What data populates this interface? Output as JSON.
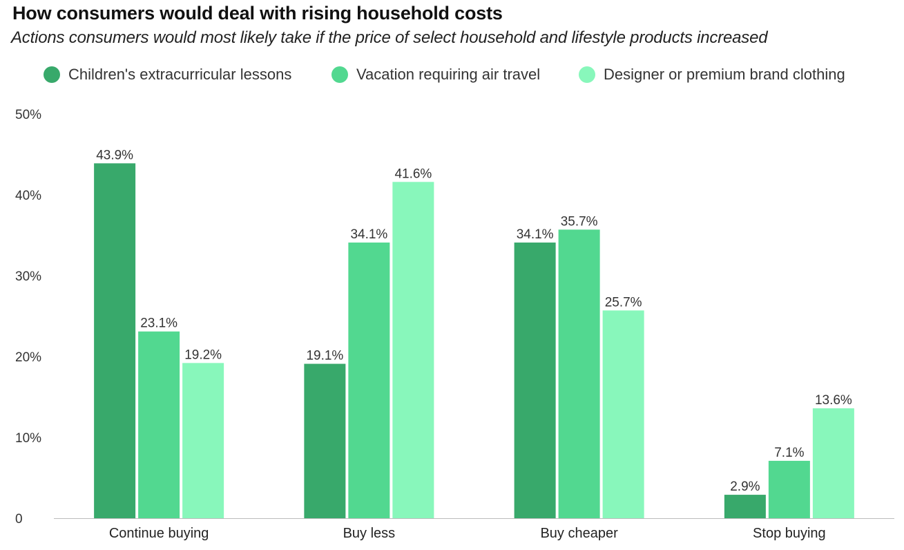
{
  "chart_data": {
    "type": "bar",
    "title": "How consumers would deal with rising household costs",
    "subtitle": "Actions consumers would most likely take if the price of select household and lifestyle products increased",
    "xlabel": "",
    "ylabel": "",
    "ylim": [
      0,
      50
    ],
    "yticks": [
      0,
      10,
      20,
      30,
      40,
      50
    ],
    "ytick_labels": [
      "0",
      "10%",
      "20%",
      "30%",
      "40%",
      "50%"
    ],
    "grid": false,
    "legend_position": "top",
    "categories": [
      "Continue buying",
      "Buy less",
      "Buy cheaper",
      "Stop buying"
    ],
    "series": [
      {
        "name": "Children's extracurricular lessons",
        "color": "#38a96b",
        "values": [
          43.9,
          19.1,
          34.1,
          2.9
        ],
        "labels": [
          "43.9%",
          "19.1%",
          "34.1%",
          "2.9%"
        ]
      },
      {
        "name": "Vacation requiring air travel",
        "color": "#52d890",
        "values": [
          23.1,
          34.1,
          35.7,
          7.1
        ],
        "labels": [
          "23.1%",
          "34.1%",
          "35.7%",
          "7.1%"
        ]
      },
      {
        "name": "Designer or premium brand clothing",
        "color": "#88f7bb",
        "values": [
          19.2,
          41.6,
          25.7,
          13.6
        ],
        "labels": [
          "19.2%",
          "41.6%",
          "25.7%",
          "13.6%"
        ]
      }
    ]
  }
}
